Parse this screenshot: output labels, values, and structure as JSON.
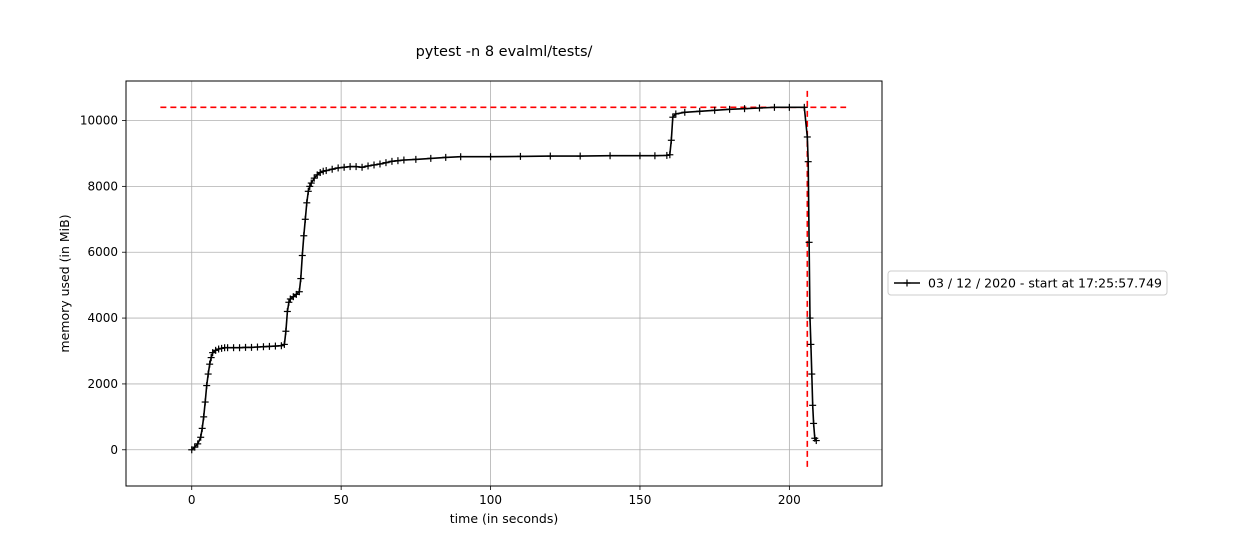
{
  "chart_data": {
    "type": "line",
    "title": "pytest -n 8 evalml/tests/",
    "xlabel": "time (in seconds)",
    "ylabel": "memory used (in MiB)",
    "xlim": [
      -22,
      231
    ],
    "ylim": [
      -1100,
      11200
    ],
    "xticks": [
      0,
      50,
      100,
      150,
      200
    ],
    "yticks": [
      0,
      2000,
      4000,
      6000,
      8000,
      10000
    ],
    "grid": true,
    "legend_placement": "outside-right",
    "series": [
      {
        "name": "03 / 12 / 2020 - start at 17:25:57.749",
        "color": "#000000",
        "marker": "+",
        "x": [
          0,
          1,
          2,
          3,
          3.5,
          4,
          4.5,
          5,
          5.5,
          6,
          6.5,
          7,
          8,
          9,
          10,
          11,
          12,
          14,
          16,
          18,
          20,
          22,
          24,
          26,
          28,
          30,
          31,
          31.5,
          32,
          32.5,
          33,
          34,
          35,
          36,
          36.5,
          37,
          37.5,
          38,
          38.5,
          39,
          39.5,
          40,
          41,
          42,
          43,
          44,
          45,
          47,
          49,
          51,
          53,
          55,
          57,
          59,
          61,
          63,
          65,
          67,
          69,
          71,
          75,
          80,
          85,
          90,
          100,
          110,
          120,
          130,
          140,
          150,
          155,
          159,
          160,
          160.5,
          161,
          162,
          165,
          170,
          175,
          180,
          185,
          190,
          195,
          200,
          205,
          206,
          206.3,
          206.6,
          206.9,
          207.2,
          207.5,
          207.8,
          208.1,
          208.5,
          209
        ],
        "y": [
          0,
          80,
          180,
          380,
          650,
          1000,
          1450,
          1950,
          2300,
          2600,
          2800,
          2950,
          3020,
          3060,
          3080,
          3100,
          3100,
          3100,
          3100,
          3110,
          3110,
          3120,
          3130,
          3140,
          3150,
          3160,
          3200,
          3600,
          4200,
          4480,
          4580,
          4650,
          4720,
          4800,
          5200,
          5900,
          6500,
          7000,
          7500,
          7850,
          8000,
          8100,
          8250,
          8350,
          8420,
          8460,
          8480,
          8520,
          8560,
          8580,
          8600,
          8600,
          8580,
          8620,
          8650,
          8680,
          8720,
          8760,
          8780,
          8800,
          8820,
          8850,
          8880,
          8900,
          8900,
          8910,
          8920,
          8920,
          8930,
          8930,
          8930,
          8940,
          8960,
          9400,
          10100,
          10200,
          10250,
          10280,
          10310,
          10340,
          10360,
          10380,
          10400,
          10400,
          10400,
          9500,
          8750,
          6300,
          4000,
          3200,
          2300,
          1350,
          800,
          350,
          280
        ]
      }
    ],
    "reference_lines": {
      "max_memory": 10400,
      "max_time": 206,
      "color": "#ff0000",
      "hline_x_span": [
        -10.5,
        219
      ],
      "vline_y_span": [
        -520,
        10900
      ]
    }
  }
}
